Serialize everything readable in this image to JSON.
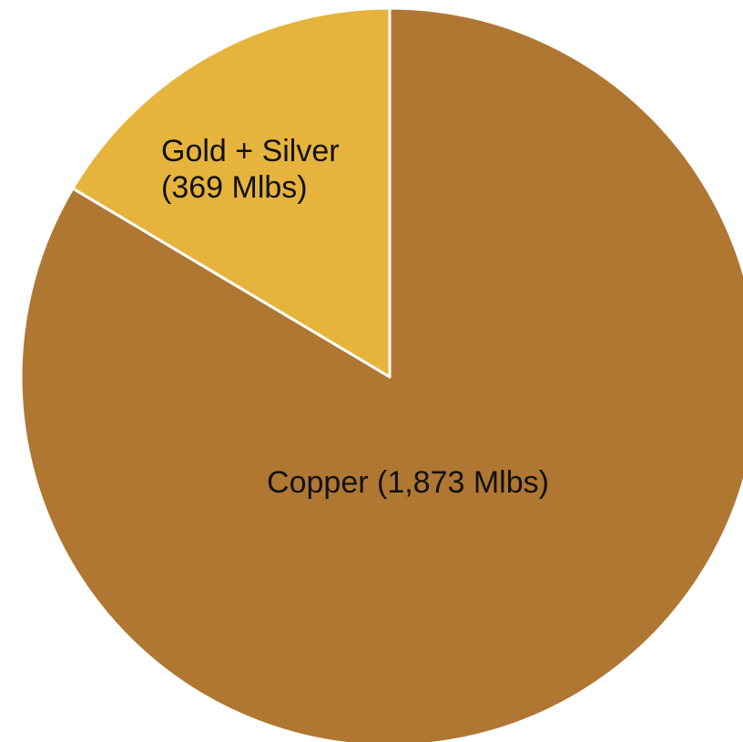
{
  "chart_data": {
    "type": "pie",
    "title": "",
    "slices": [
      {
        "category": "Copper",
        "label_lines": [
          "Copper (1,873 Mlbs)"
        ],
        "value": 1873,
        "unit": "Mlbs",
        "color": "#B07733"
      },
      {
        "category": "Gold + Silver",
        "label_lines": [
          "Gold + Silver",
          "(369 Mlbs)"
        ],
        "value": 369,
        "unit": "Mlbs",
        "color": "#E6B43C"
      }
    ],
    "start_angle_deg": 0,
    "direction": "clockwise",
    "slice_border_color": "#FFFFFF",
    "legend": "none"
  }
}
